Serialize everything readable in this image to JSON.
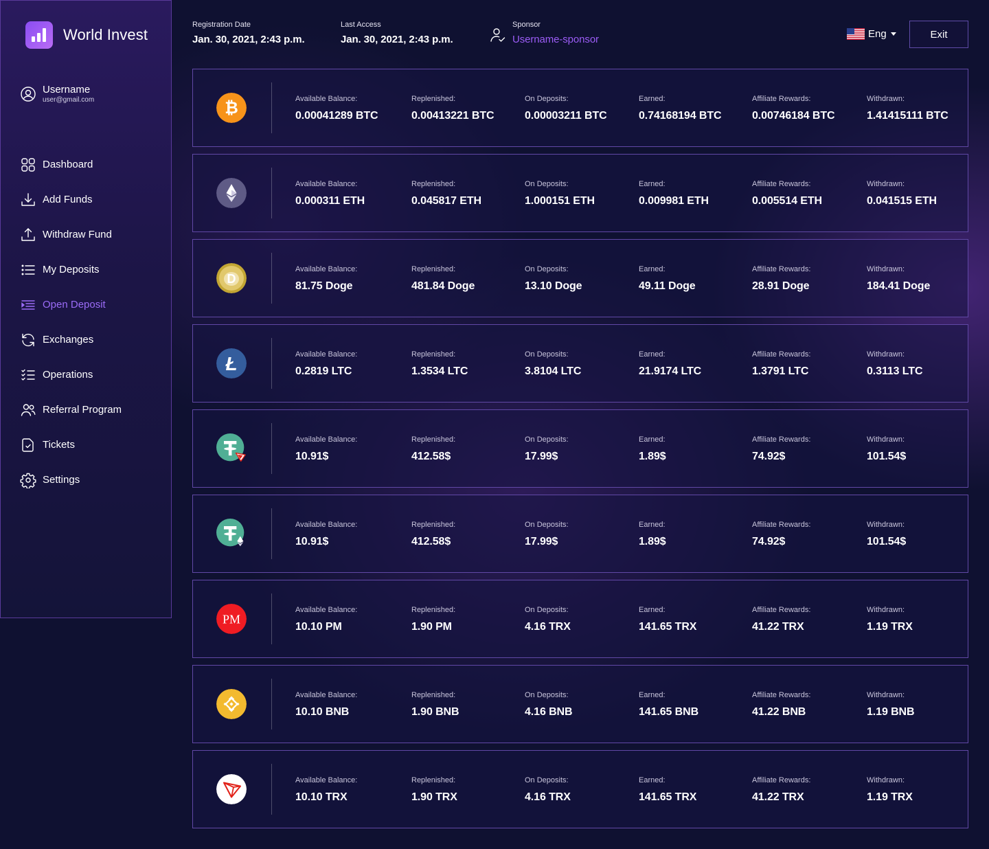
{
  "app": {
    "title": "World Invest"
  },
  "user": {
    "name": "Username",
    "email": "user@gmail.com"
  },
  "nav": [
    {
      "label": "Dashboard",
      "icon": "dashboard-icon",
      "active": false
    },
    {
      "label": "Add Funds",
      "icon": "download-icon",
      "active": false
    },
    {
      "label": "Withdraw Fund",
      "icon": "upload-icon",
      "active": false
    },
    {
      "label": "My Deposits",
      "icon": "list-icon",
      "active": false
    },
    {
      "label": "Open Deposit",
      "icon": "list-indent-icon",
      "active": true
    },
    {
      "label": "Exchanges",
      "icon": "refresh-icon",
      "active": false
    },
    {
      "label": "Operations",
      "icon": "checklist-icon",
      "active": false
    },
    {
      "label": "Referral Program",
      "icon": "users-icon",
      "active": false
    },
    {
      "label": "Tickets",
      "icon": "ticket-icon",
      "active": false
    },
    {
      "label": "Settings",
      "icon": "gear-icon",
      "active": false
    }
  ],
  "header": {
    "registration": {
      "caption": "Registration Date",
      "value": "Jan. 30, 2021, 2:43 p.m."
    },
    "last_access": {
      "caption": "Last Access",
      "value": "Jan. 30, 2021, 2:43 p.m."
    },
    "sponsor": {
      "caption": "Sponsor",
      "value": "Username-sponsor"
    },
    "language": "Eng",
    "exit_label": "Exit"
  },
  "labels": {
    "available": "Available Balance:",
    "replenished": "Replenished:",
    "on_deposits": "On Deposits:",
    "earned": "Earned:",
    "affiliate": "Affiliate Rewards:",
    "withdrawn": "Withdrawn:"
  },
  "colors": {
    "accent": "#9b5cf5",
    "bg": "#0f1131",
    "border": "#6148a6"
  },
  "wallets": [
    {
      "coin": "bitcoin-icon",
      "available": "0.00041289 BTC",
      "replenished": "0.00413221 BTC",
      "on_deposits": "0.00003211 BTC",
      "earned": "0.74168194 BTC",
      "affiliate": "0.00746184 BTC",
      "withdrawn": "1.41415111 BTC"
    },
    {
      "coin": "ethereum-icon",
      "available": "0.000311 ETH",
      "replenished": "0.045817 ETH",
      "on_deposits": "1.000151 ETH",
      "earned": "0.009981 ETH",
      "affiliate": "0.005514 ETH",
      "withdrawn": "0.041515 ETH"
    },
    {
      "coin": "dogecoin-icon",
      "available": "81.75 Doge",
      "replenished": "481.84 Doge",
      "on_deposits": "13.10 Doge",
      "earned": "49.11 Doge",
      "affiliate": "28.91 Doge",
      "withdrawn": "184.41 Doge"
    },
    {
      "coin": "litecoin-icon",
      "available": "0.2819 LTC",
      "replenished": "1.3534 LTC",
      "on_deposits": "3.8104 LTC",
      "earned": "21.9174 LTC",
      "affiliate": "1.3791 LTC",
      "withdrawn": "0.3113 LTC"
    },
    {
      "coin": "tether-trc20-icon",
      "available": "10.91$",
      "replenished": "412.58$",
      "on_deposits": "17.99$",
      "earned": "1.89$",
      "affiliate": "74.92$",
      "withdrawn": "101.54$"
    },
    {
      "coin": "tether-erc20-icon",
      "available": "10.91$",
      "replenished": "412.58$",
      "on_deposits": "17.99$",
      "earned": "1.89$",
      "affiliate": "74.92$",
      "withdrawn": "101.54$"
    },
    {
      "coin": "perfect-money-icon",
      "available": "10.10 PM",
      "replenished": "1.90 PM",
      "on_deposits": "4.16 TRX",
      "earned": "141.65 TRX",
      "affiliate": "41.22 TRX",
      "withdrawn": "1.19 TRX"
    },
    {
      "coin": "binance-icon",
      "available": "10.10 BNB",
      "replenished": "1.90 BNB",
      "on_deposits": "4.16 BNB",
      "earned": "141.65 BNB",
      "affiliate": "41.22 BNB",
      "withdrawn": "1.19 BNB"
    },
    {
      "coin": "tron-icon",
      "available": "10.10 TRX",
      "replenished": "1.90 TRX",
      "on_deposits": "4.16 TRX",
      "earned": "141.65 TRX",
      "affiliate": "41.22 TRX",
      "withdrawn": "1.19 TRX"
    }
  ]
}
